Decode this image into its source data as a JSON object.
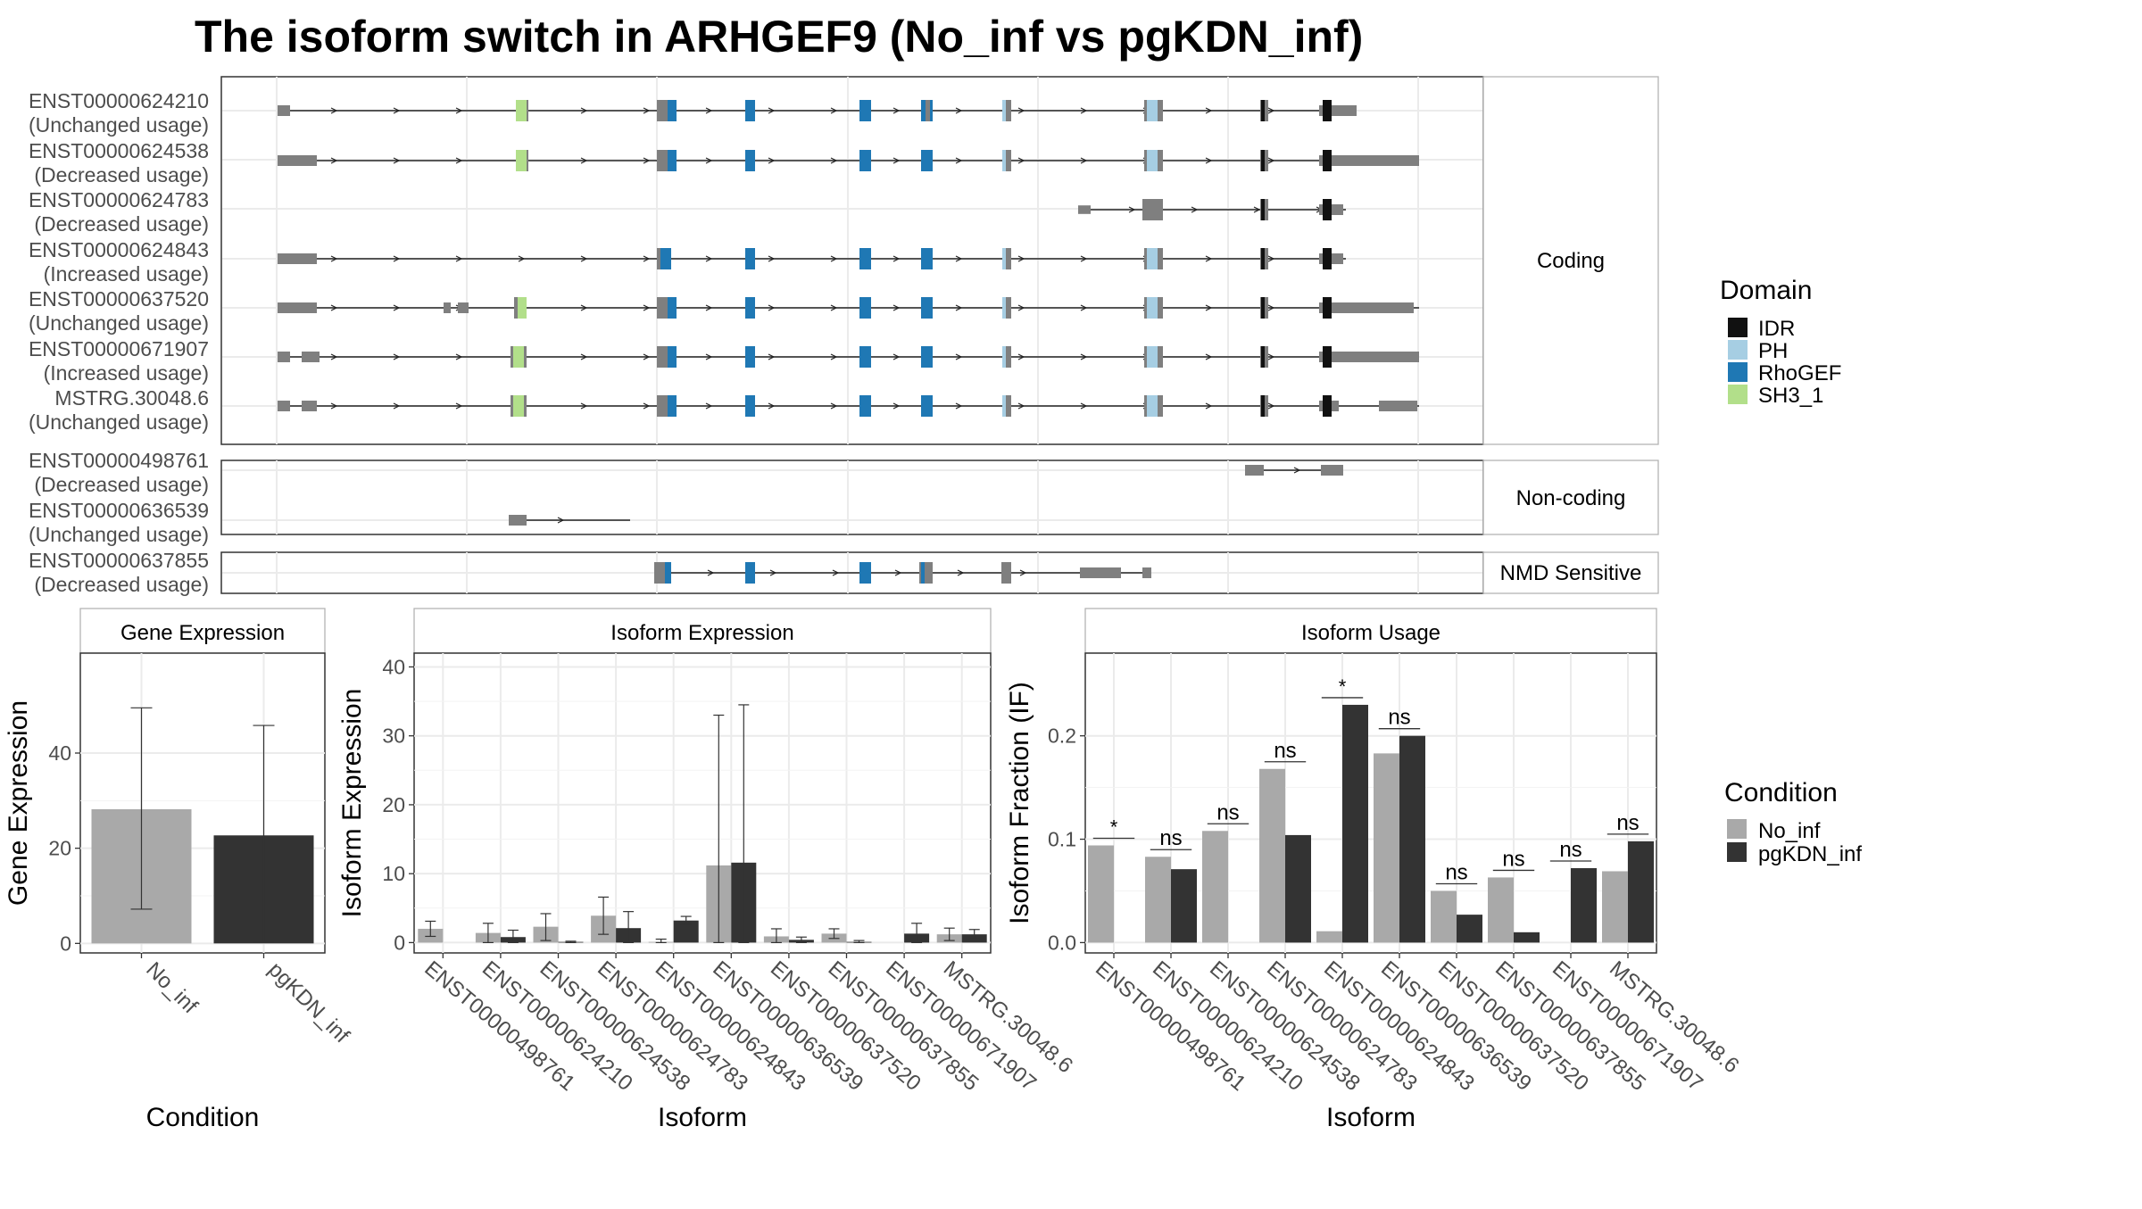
{
  "title": "The isoform switch in ARHGEF9 (No_inf vs pgKDN_inf)",
  "colors": {
    "exon": "#7f7f7f",
    "IDR": "#111111",
    "PH": "#a6cee3",
    "RhoGEF": "#1f78b4",
    "SH3_1": "#b2df8a",
    "No_inf": "#a9a9a9",
    "pgKDN_inf": "#333333",
    "panel_border": "#333333",
    "strip_bg": "#ffffff",
    "grid": "#ebebeb"
  },
  "structure": {
    "facets": [
      {
        "label": "Coding",
        "isoforms": [
          {
            "id": "ENST00000624210",
            "usage": "(Unchanged usage)"
          },
          {
            "id": "ENST00000624538",
            "usage": "(Decreased usage)"
          },
          {
            "id": "ENST00000624783",
            "usage": "(Decreased usage)"
          },
          {
            "id": "ENST00000624843",
            "usage": "(Increased usage)"
          },
          {
            "id": "ENST00000637520",
            "usage": "(Unchanged usage)"
          },
          {
            "id": "ENST00000671907",
            "usage": "(Increased usage)"
          },
          {
            "id": "MSTRG.30048.6",
            "usage": "(Unchanged usage)"
          }
        ]
      },
      {
        "label": "Non-coding",
        "isoforms": [
          {
            "id": "ENST00000498761",
            "usage": "(Decreased usage)"
          },
          {
            "id": "ENST00000636539",
            "usage": "(Unchanged usage)"
          }
        ]
      },
      {
        "label": "NMD Sensitive",
        "isoforms": [
          {
            "id": "ENST00000637855",
            "usage": "(Decreased usage)"
          }
        ]
      }
    ],
    "legend": {
      "title": "Domain",
      "items": [
        {
          "label": "IDR",
          "color": "#111111"
        },
        {
          "label": "PH",
          "color": "#a6cee3"
        },
        {
          "label": "RhoGEF",
          "color": "#1f78b4"
        },
        {
          "label": "SH3_1",
          "color": "#b2df8a"
        }
      ]
    }
  },
  "chart_data": [
    {
      "type": "bar",
      "title": "Gene Expression",
      "xlabel": "Condition",
      "ylabel": "Gene Expression",
      "categories": [
        "No_inf",
        "pgKDN_inf"
      ],
      "values": [
        28.2,
        22.7
      ],
      "error_low": [
        7.2,
        0.2
      ],
      "error_high": [
        49.5,
        45.8
      ],
      "yticks": [
        0,
        20,
        40
      ],
      "ylim": [
        -2,
        61
      ]
    },
    {
      "type": "bar",
      "title": "Isoform Expression",
      "xlabel": "Isoform",
      "ylabel": "Isoform Expression",
      "categories": [
        "ENST00000498761",
        "ENST00000624210",
        "ENST00000624538",
        "ENST00000624783",
        "ENST00000624843",
        "ENST00000636539",
        "ENST00000637520",
        "ENST00000637855",
        "ENST00000671907",
        "MSTRG.30048.6"
      ],
      "series": [
        {
          "name": "No_inf",
          "values": [
            2.0,
            1.4,
            2.3,
            3.9,
            0.1,
            11.2,
            0.9,
            1.3,
            0.0,
            1.2
          ],
          "error_low": [
            0.9,
            0.0,
            0.3,
            1.2,
            0.0,
            0.0,
            0.0,
            0.6,
            0.0,
            0.3
          ],
          "error_high": [
            3.1,
            2.8,
            4.2,
            6.6,
            0.5,
            33.0,
            2.0,
            2.0,
            0.0,
            2.1
          ]
        },
        {
          "name": "pgKDN_inf",
          "values": [
            0.0,
            0.8,
            0.1,
            2.1,
            3.2,
            11.6,
            0.4,
            0.1,
            1.3,
            1.2
          ],
          "error_low": [
            0.0,
            0.0,
            0.0,
            0.0,
            2.6,
            0.0,
            0.0,
            0.0,
            0.0,
            0.5
          ],
          "error_high": [
            0.0,
            1.8,
            0.2,
            4.5,
            3.8,
            34.5,
            0.8,
            0.3,
            2.8,
            1.9
          ]
        }
      ],
      "yticks": [
        0,
        10,
        20,
        30,
        40
      ],
      "ylim": [
        -1.5,
        42
      ]
    },
    {
      "type": "bar",
      "title": "Isoform Usage",
      "xlabel": "Isoform",
      "ylabel": "Isoform Fraction (IF)",
      "categories": [
        "ENST00000498761",
        "ENST00000624210",
        "ENST00000624538",
        "ENST00000624783",
        "ENST00000624843",
        "ENST00000636539",
        "ENST00000637520",
        "ENST00000637855",
        "ENST00000671907",
        "MSTRG.30048.6"
      ],
      "series": [
        {
          "name": "No_inf",
          "values": [
            0.094,
            0.083,
            0.108,
            0.168,
            0.011,
            0.183,
            0.05,
            0.063,
            0.0,
            0.069
          ]
        },
        {
          "name": "pgKDN_inf",
          "values": [
            0.0,
            0.071,
            0.0,
            0.104,
            0.23,
            0.2,
            0.027,
            0.01,
            0.072,
            0.098
          ]
        }
      ],
      "significance": [
        "*",
        "ns",
        "ns",
        "ns",
        "*",
        "ns",
        "ns",
        "ns",
        "ns",
        "ns"
      ],
      "yticks": [
        "0.0",
        "0.1",
        "0.2"
      ],
      "ylim": [
        -0.01,
        0.28
      ]
    }
  ],
  "condition_legend": {
    "title": "Condition",
    "items": [
      {
        "label": "No_inf",
        "color": "#a9a9a9"
      },
      {
        "label": "pgKDN_inf",
        "color": "#333333"
      }
    ]
  }
}
